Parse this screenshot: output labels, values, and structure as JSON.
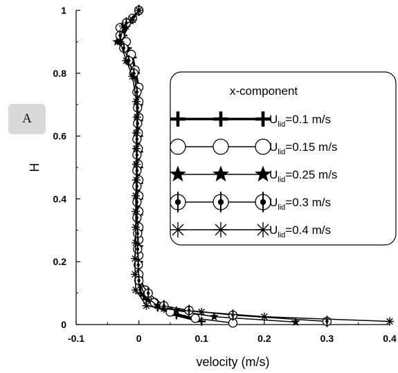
{
  "panel": {
    "label": "A"
  },
  "chart_data": {
    "type": "line",
    "xlabel": "velocity (m/s)",
    "ylabel": "H",
    "xlim": [
      -0.1,
      0.4
    ],
    "ylim": [
      0,
      1
    ],
    "x_ticks": [
      "-0.1",
      "0",
      "0.1",
      "0.2",
      "0.3",
      "0.4"
    ],
    "y_ticks": [
      "0",
      "0.2",
      "0.4",
      "0.6",
      "0.8",
      "1"
    ],
    "grid": false,
    "legend": {
      "title": "x-component",
      "placement": "center-right",
      "entries": [
        {
          "prefix": "U",
          "sub": "lid",
          "suffix": "=0.1 m/s"
        },
        {
          "prefix": "U",
          "sub": "lid",
          "suffix": "=0.15 m/s"
        },
        {
          "prefix": "U",
          "sub": "lid",
          "suffix": "=0.25 m/s"
        },
        {
          "prefix": "U",
          "sub": "lid",
          "suffix": "=0.3 m/s"
        },
        {
          "prefix": "U",
          "sub": "lid",
          "suffix": "=0.4 m/s"
        }
      ]
    },
    "series": [
      {
        "marker": "plus",
        "line_width": 3.5,
        "points": [
          [
            0.1,
            0.01
          ],
          [
            0.06,
            0.03
          ],
          [
            0.03,
            0.055
          ],
          [
            0.012,
            0.08
          ],
          [
            0.003,
            0.1
          ],
          [
            0,
            0.15
          ],
          [
            0,
            0.2
          ],
          [
            0,
            0.25
          ],
          [
            0,
            0.3
          ],
          [
            0,
            0.35
          ],
          [
            0,
            0.4
          ],
          [
            0,
            0.45
          ],
          [
            0,
            0.5
          ],
          [
            0,
            0.55
          ],
          [
            0,
            0.6
          ],
          [
            0,
            0.65
          ],
          [
            0,
            0.7
          ],
          [
            0,
            0.75
          ],
          [
            -0.005,
            0.8
          ],
          [
            -0.01,
            0.85
          ],
          [
            -0.018,
            0.88
          ],
          [
            -0.025,
            0.92
          ],
          [
            -0.015,
            0.96
          ],
          [
            0,
            1.0
          ]
        ]
      },
      {
        "marker": "circle",
        "line_width": 1.5,
        "points": [
          [
            0.15,
            0.005
          ],
          [
            0.09,
            0.02
          ],
          [
            0.05,
            0.04
          ],
          [
            0.025,
            0.07
          ],
          [
            0.01,
            0.11
          ],
          [
            0,
            0.16
          ],
          [
            0,
            0.22
          ],
          [
            0,
            0.27
          ],
          [
            0,
            0.31
          ],
          [
            0,
            0.36
          ],
          [
            0,
            0.41
          ],
          [
            0,
            0.46
          ],
          [
            -0.001,
            0.51
          ],
          [
            -0.001,
            0.56
          ],
          [
            -0.001,
            0.61
          ],
          [
            0,
            0.66
          ],
          [
            0,
            0.71
          ],
          [
            0,
            0.755
          ],
          [
            -0.006,
            0.81
          ],
          [
            -0.012,
            0.86
          ],
          [
            -0.02,
            0.9
          ],
          [
            -0.03,
            0.945
          ],
          [
            -0.01,
            0.975
          ],
          [
            0,
            1.0
          ]
        ]
      },
      {
        "marker": "star",
        "line_width": 1.5,
        "points": [
          [
            0.25,
            0.008
          ],
          [
            0.12,
            0.025
          ],
          [
            0.06,
            0.045
          ],
          [
            0.03,
            0.06
          ],
          [
            0.01,
            0.09
          ],
          [
            0,
            0.14
          ],
          [
            -0.001,
            0.19
          ],
          [
            -0.001,
            0.24
          ],
          [
            -0.001,
            0.29
          ],
          [
            -0.002,
            0.34
          ],
          [
            -0.002,
            0.39
          ],
          [
            -0.002,
            0.44
          ],
          [
            -0.002,
            0.49
          ],
          [
            -0.002,
            0.54
          ],
          [
            -0.002,
            0.59
          ],
          [
            -0.001,
            0.64
          ],
          [
            -0.001,
            0.69
          ],
          [
            -0.002,
            0.74
          ],
          [
            -0.008,
            0.79
          ],
          [
            -0.016,
            0.84
          ],
          [
            -0.024,
            0.88
          ],
          [
            -0.035,
            0.9
          ],
          [
            -0.02,
            0.95
          ],
          [
            0,
            1.0
          ]
        ]
      },
      {
        "marker": "circle-plus",
        "line_width": 1.5,
        "points": [
          [
            0.3,
            0.01
          ],
          [
            0.15,
            0.03
          ],
          [
            0.08,
            0.045
          ],
          [
            0.04,
            0.06
          ],
          [
            0.015,
            0.1
          ],
          [
            0,
            0.14
          ],
          [
            -0.001,
            0.19
          ],
          [
            -0.002,
            0.24
          ],
          [
            -0.002,
            0.29
          ],
          [
            -0.003,
            0.34
          ],
          [
            -0.003,
            0.39
          ],
          [
            -0.003,
            0.44
          ],
          [
            -0.003,
            0.49
          ],
          [
            -0.003,
            0.54
          ],
          [
            -0.003,
            0.59
          ],
          [
            -0.002,
            0.64
          ],
          [
            -0.002,
            0.69
          ],
          [
            -0.003,
            0.74
          ],
          [
            -0.008,
            0.8
          ],
          [
            -0.016,
            0.84
          ],
          [
            -0.024,
            0.88
          ],
          [
            -0.03,
            0.92
          ],
          [
            -0.02,
            0.96
          ],
          [
            0,
            1.0
          ]
        ]
      },
      {
        "marker": "asterisk",
        "line_width": 1.5,
        "points": [
          [
            0.4,
            0.01
          ],
          [
            0.2,
            0.025
          ],
          [
            0.1,
            0.04
          ],
          [
            0.04,
            0.05
          ],
          [
            0.012,
            0.06
          ],
          [
            -0.005,
            0.11
          ],
          [
            -0.006,
            0.16
          ],
          [
            -0.006,
            0.21
          ],
          [
            -0.005,
            0.26
          ],
          [
            -0.005,
            0.31
          ],
          [
            -0.005,
            0.36
          ],
          [
            -0.005,
            0.41
          ],
          [
            -0.004,
            0.46
          ],
          [
            -0.004,
            0.51
          ],
          [
            -0.004,
            0.56
          ],
          [
            -0.004,
            0.61
          ],
          [
            -0.003,
            0.66
          ],
          [
            -0.004,
            0.71
          ],
          [
            -0.01,
            0.79
          ],
          [
            -0.02,
            0.84
          ],
          [
            -0.03,
            0.9
          ],
          [
            -0.025,
            0.95
          ],
          [
            -0.01,
            0.97
          ],
          [
            0,
            1.0
          ]
        ]
      }
    ]
  }
}
